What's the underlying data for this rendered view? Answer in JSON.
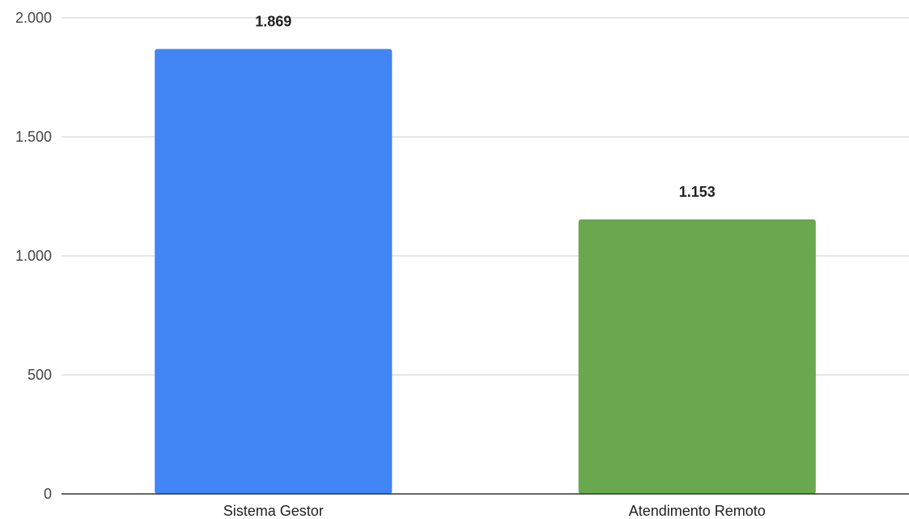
{
  "chart_data": {
    "type": "bar",
    "categories": [
      "Sistema Gestor",
      "Atendimento Remoto"
    ],
    "values": [
      1869,
      1153
    ],
    "data_labels": [
      "1.869",
      "1.153"
    ],
    "colors": [
      "#4285f4",
      "#6aa84f"
    ],
    "ylim": [
      0,
      2000
    ],
    "y_ticks": [
      0,
      500,
      1000,
      1500,
      2000
    ],
    "y_tick_labels": [
      "0",
      "500",
      "1.000",
      "1.500",
      "2.000"
    ],
    "grid": true,
    "legend": "none"
  }
}
